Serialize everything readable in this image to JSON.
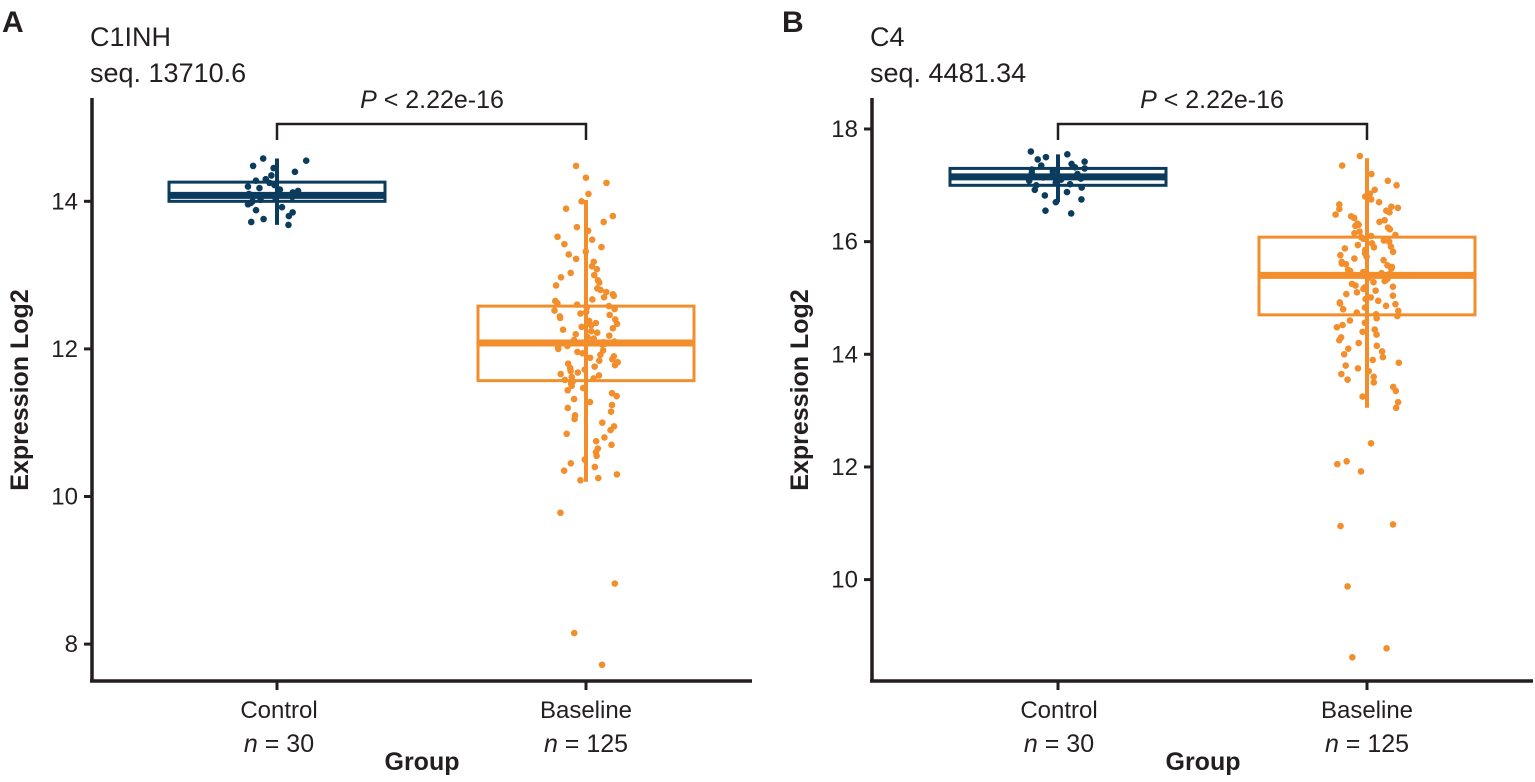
{
  "chart_data": [
    {
      "type": "boxplot",
      "panel_label": "A",
      "title": "C1INH",
      "subtitle": "seq. 13710.6",
      "xlabel": "Group",
      "ylabel": "Expression Log2",
      "ylim": [
        7.5,
        15.4
      ],
      "yticks": [
        8,
        10,
        12,
        14
      ],
      "pvalue": {
        "prefix": "P",
        "text": " < 2.22e-16"
      },
      "groups": [
        {
          "name": "Control",
          "n_prefix": "n",
          "n_text": " = 30",
          "color": "#0b3c5d",
          "stats": {
            "whisker_low": 13.68,
            "q1": 14.0,
            "median": 14.08,
            "q3": 14.26,
            "whisker_high": 14.58
          },
          "points": [
            14.58,
            14.55,
            14.48,
            14.45,
            14.4,
            14.35,
            14.3,
            14.28,
            14.25,
            14.22,
            14.2,
            14.18,
            14.16,
            14.14,
            14.12,
            14.1,
            14.08,
            14.06,
            14.04,
            14.02,
            14.0,
            13.98,
            13.96,
            13.92,
            13.88,
            13.85,
            13.8,
            13.76,
            13.72,
            13.68
          ]
        },
        {
          "name": "Baseline",
          "n_prefix": "n",
          "n_text": " = 125",
          "color": "#f28e2b",
          "stats": {
            "whisker_low": 10.2,
            "q1": 11.57,
            "median": 12.08,
            "q3": 12.58,
            "whisker_high": 14.02
          },
          "points": [
            14.48,
            14.32,
            14.25,
            14.1,
            14.0,
            13.9,
            13.8,
            13.72,
            13.65,
            13.6,
            13.52,
            13.48,
            13.42,
            13.38,
            13.32,
            13.28,
            13.22,
            13.18,
            13.12,
            13.08,
            13.03,
            13.0,
            12.97,
            12.93,
            12.9,
            12.86,
            12.82,
            12.8,
            12.77,
            12.74,
            12.72,
            12.7,
            12.67,
            12.65,
            12.62,
            12.6,
            12.58,
            12.56,
            12.54,
            12.52,
            12.5,
            12.48,
            12.46,
            12.44,
            12.42,
            12.4,
            12.38,
            12.36,
            12.34,
            12.32,
            12.3,
            12.28,
            12.26,
            12.24,
            12.22,
            12.2,
            12.18,
            12.16,
            12.14,
            12.12,
            12.1,
            12.09,
            12.08,
            12.07,
            12.06,
            12.04,
            12.02,
            12.0,
            11.98,
            11.96,
            11.94,
            11.92,
            11.9,
            11.88,
            11.86,
            11.84,
            11.82,
            11.8,
            11.78,
            11.76,
            11.74,
            11.72,
            11.7,
            11.68,
            11.66,
            11.64,
            11.62,
            11.6,
            11.58,
            11.56,
            11.53,
            11.5,
            11.47,
            11.44,
            11.4,
            11.36,
            11.32,
            11.28,
            11.24,
            11.2,
            11.15,
            11.1,
            11.05,
            11.0,
            10.95,
            10.9,
            10.85,
            10.8,
            10.75,
            10.7,
            10.65,
            10.6,
            10.55,
            10.5,
            10.45,
            10.4,
            10.35,
            10.3,
            10.25,
            10.22,
            9.78,
            8.82,
            8.15,
            7.72,
            12.35
          ]
        }
      ]
    },
    {
      "type": "boxplot",
      "panel_label": "B",
      "title": "C4",
      "subtitle": "seq. 4481.34",
      "xlabel": "Group",
      "ylabel": "Expression Log2",
      "ylim": [
        8.2,
        18.55
      ],
      "yticks": [
        10,
        12,
        14,
        16,
        18
      ],
      "pvalue": {
        "prefix": "P",
        "text": " < 2.22e-16"
      },
      "groups": [
        {
          "name": "Control",
          "n_prefix": "n",
          "n_text": " = 30",
          "color": "#0b3c5d",
          "stats": {
            "whisker_low": 16.7,
            "q1": 17.0,
            "median": 17.15,
            "q3": 17.3,
            "whisker_high": 17.55
          },
          "points": [
            17.6,
            17.55,
            17.5,
            17.46,
            17.42,
            17.38,
            17.35,
            17.32,
            17.3,
            17.28,
            17.25,
            17.22,
            17.2,
            17.18,
            17.16,
            17.14,
            17.12,
            17.1,
            17.08,
            17.05,
            17.02,
            17.0,
            16.96,
            16.92,
            16.88,
            16.82,
            16.75,
            16.7,
            16.55,
            16.5
          ]
        },
        {
          "name": "Baseline",
          "n_prefix": "n",
          "n_text": " = 125",
          "color": "#f28e2b",
          "stats": {
            "whisker_low": 13.05,
            "q1": 14.7,
            "median": 15.4,
            "q3": 16.08,
            "whisker_high": 17.48
          },
          "points": [
            17.52,
            17.35,
            17.2,
            17.08,
            17.0,
            16.92,
            16.85,
            16.8,
            16.75,
            16.7,
            16.66,
            16.62,
            16.58,
            16.55,
            16.52,
            16.48,
            16.45,
            16.42,
            16.38,
            16.35,
            16.32,
            16.28,
            16.25,
            16.22,
            16.18,
            16.15,
            16.12,
            16.1,
            16.08,
            16.05,
            16.02,
            16.0,
            15.97,
            15.94,
            15.91,
            15.88,
            15.85,
            15.82,
            15.79,
            15.76,
            15.73,
            15.7,
            15.67,
            15.64,
            15.61,
            15.58,
            15.55,
            15.52,
            15.5,
            15.48,
            15.46,
            15.44,
            15.42,
            15.4,
            15.38,
            15.36,
            15.34,
            15.32,
            15.3,
            15.28,
            15.25,
            15.22,
            15.19,
            15.16,
            15.13,
            15.1,
            15.07,
            15.04,
            15.01,
            14.98,
            14.95,
            14.92,
            14.89,
            14.86,
            14.83,
            14.8,
            14.77,
            14.74,
            14.71,
            14.68,
            14.64,
            14.6,
            14.56,
            14.52,
            14.48,
            14.44,
            14.4,
            14.35,
            14.3,
            14.25,
            14.2,
            14.15,
            14.1,
            14.05,
            14.0,
            13.95,
            13.9,
            13.85,
            13.8,
            13.75,
            13.7,
            13.65,
            13.6,
            13.55,
            13.5,
            13.42,
            13.35,
            13.25,
            13.15,
            13.05,
            12.42,
            12.1,
            12.05,
            11.92,
            10.98,
            10.95,
            9.88,
            8.78,
            8.62,
            15.6,
            15.9,
            16.3,
            16.6,
            15.2,
            14.9
          ]
        }
      ]
    }
  ]
}
